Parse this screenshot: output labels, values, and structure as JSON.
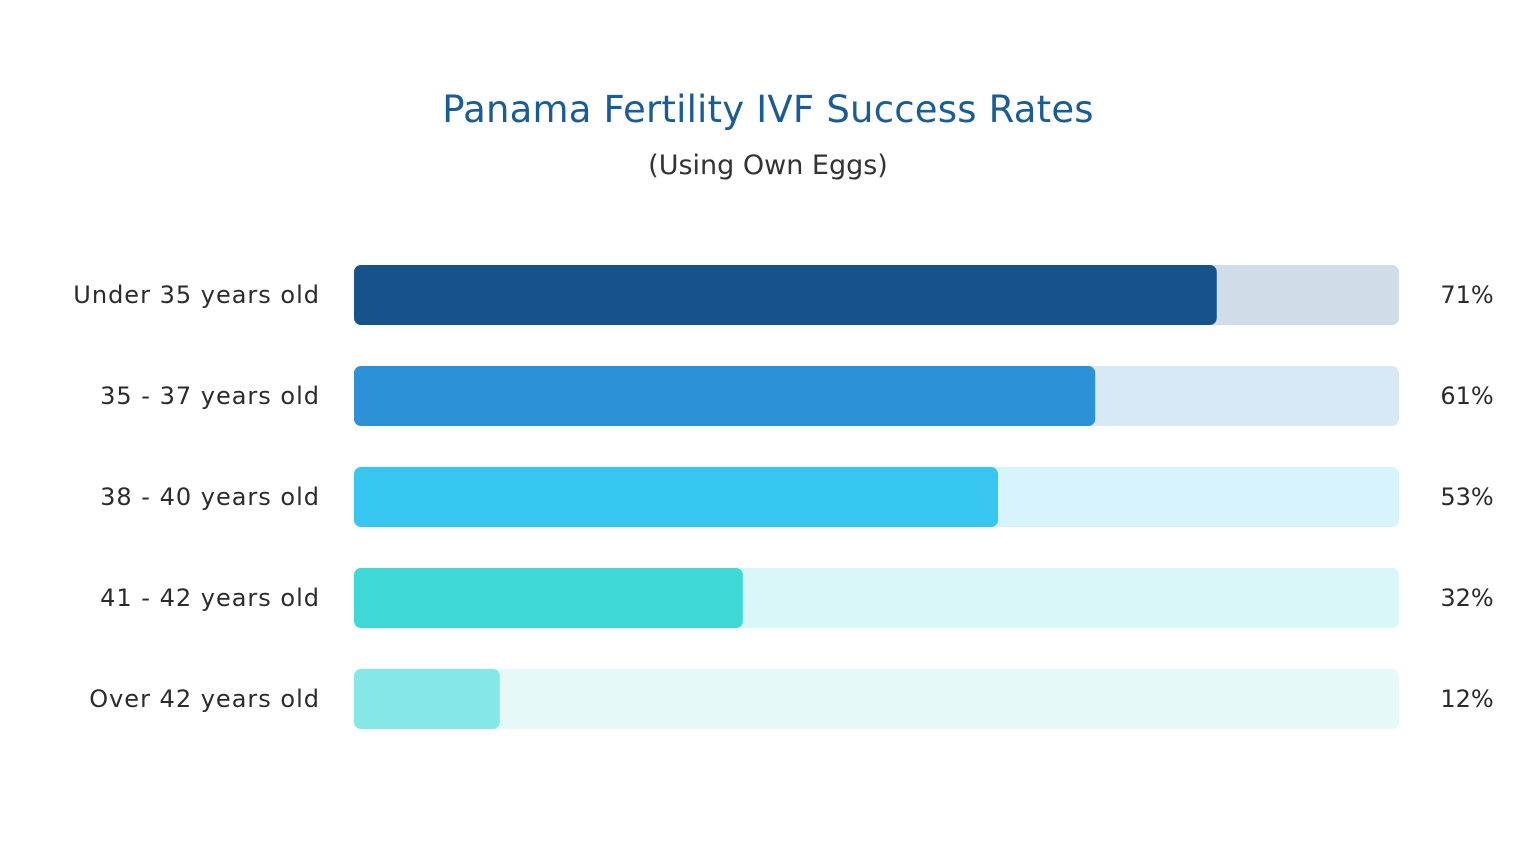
{
  "chart_data": {
    "type": "bar",
    "orientation": "horizontal",
    "title": "Panama Fertility IVF Success Rates",
    "subtitle": "(Using Own Eggs)",
    "categories": [
      "Under 35 years old",
      "35 - 37 years old",
      "38 - 40 years old",
      "41 - 42 years old",
      "Over 42 years old"
    ],
    "values": [
      71,
      61,
      53,
      32,
      12
    ],
    "value_labels": [
      "71%",
      "61%",
      "53%",
      "32%",
      "12%"
    ],
    "grid": false,
    "legend": "none",
    "colors": {
      "bars": [
        "#15538a",
        "#2c91d6",
        "#37c6ef",
        "#3ed9d6",
        "#85e8e7"
      ],
      "tracks": [
        "#d0dce8",
        "#d8e9f6",
        "#d7f3fb",
        "#d8f7f6",
        "#e6f9f9"
      ],
      "title": "#1a5d96",
      "text": "#2b2b2b"
    }
  }
}
